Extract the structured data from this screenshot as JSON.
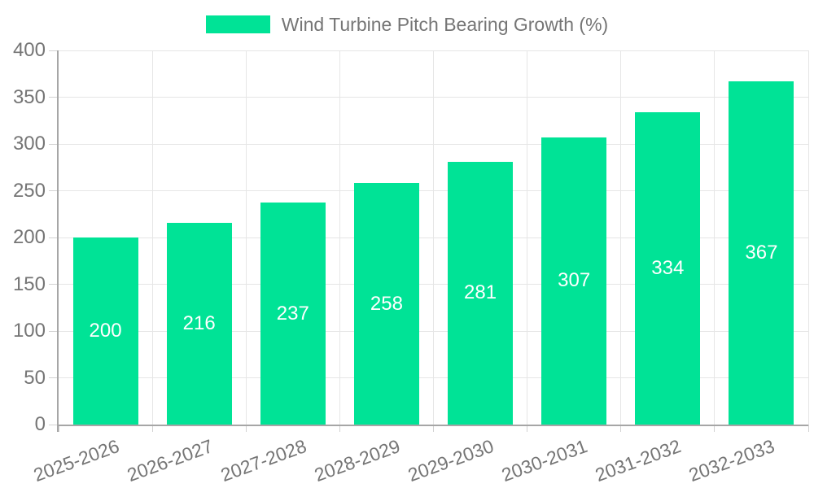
{
  "chart_data": {
    "type": "bar",
    "title": "Wind Turbine Pitch Bearing Growth (%)",
    "legend": {
      "position": "top",
      "entries": [
        "Wind Turbine Pitch Bearing Growth (%)"
      ]
    },
    "categories": [
      "2025-2026",
      "2026-2027",
      "2027-2028",
      "2028-2029",
      "2029-2030",
      "2030-2031",
      "2031-2032",
      "2032-2033"
    ],
    "values": [
      200,
      216,
      237,
      258,
      281,
      307,
      334,
      367
    ],
    "xlabel": "",
    "ylabel": "",
    "ylim": [
      0,
      400
    ],
    "yticks": [
      0,
      50,
      100,
      150,
      200,
      250,
      300,
      350,
      400
    ],
    "grid": true,
    "x_label_rotation_deg": -20,
    "colors": {
      "bar": "#00E396",
      "grid": "#e6e6e6",
      "axis": "#a6a6a6",
      "tick": "#d2d2d2",
      "tick_label": "#757575",
      "value_label": "#ffffff",
      "legend_text": "#757575",
      "background": "#ffffff"
    }
  }
}
